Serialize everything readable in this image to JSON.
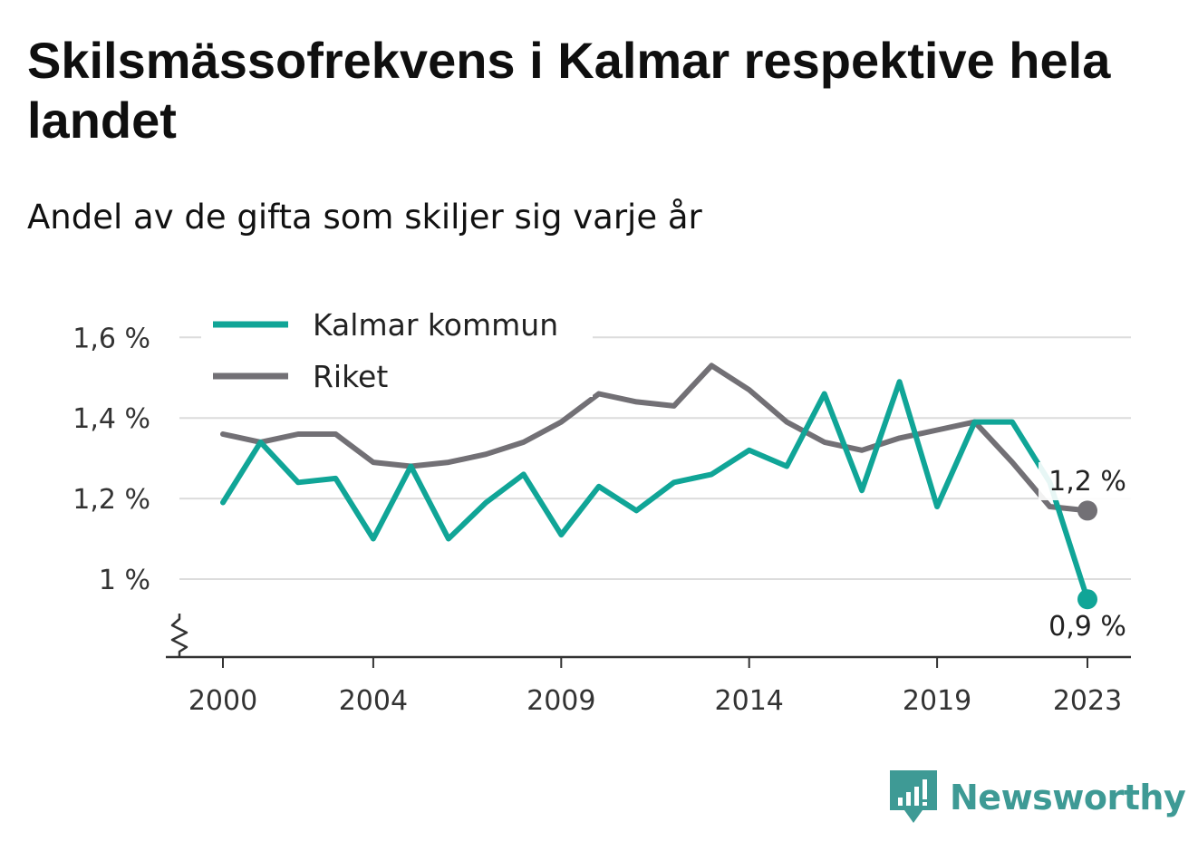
{
  "title": "Skilsmässofrekvens i Kalmar respektive hela landet",
  "subtitle": "Andel av de gifta som skiljer sig varje år",
  "brand": {
    "name": "Newsworthy",
    "icon": "newsworthy-logo-icon",
    "color": "#3e9a95"
  },
  "chart_data": {
    "type": "line",
    "x": [
      2000,
      2001,
      2002,
      2003,
      2004,
      2005,
      2006,
      2007,
      2008,
      2009,
      2010,
      2011,
      2012,
      2013,
      2014,
      2015,
      2016,
      2017,
      2018,
      2019,
      2020,
      2021,
      2022,
      2023
    ],
    "x_ticks": [
      2000,
      2004,
      2009,
      2014,
      2019,
      2023
    ],
    "x_tick_labels": [
      "2000",
      "2004",
      "2009",
      "2014",
      "2019",
      "2023"
    ],
    "y_ticks": [
      1.0,
      1.2,
      1.4,
      1.6
    ],
    "y_tick_labels": [
      "1 %",
      "1,2 %",
      "1,4 %",
      "1,6 %"
    ],
    "ylim": [
      0.8,
      1.6
    ],
    "y_axis_broken": true,
    "grid": true,
    "legend_position": "top-left",
    "series": [
      {
        "name": "Kalmar kommun",
        "color": "#10a597",
        "values": [
          1.19,
          1.34,
          1.24,
          1.25,
          1.1,
          1.28,
          1.1,
          1.19,
          1.26,
          1.11,
          1.23,
          1.17,
          1.24,
          1.26,
          1.32,
          1.28,
          1.46,
          1.22,
          1.49,
          1.18,
          1.39,
          1.39,
          1.24,
          0.95
        ],
        "end_label": "0,9 %"
      },
      {
        "name": "Riket",
        "color": "#727075",
        "values": [
          1.36,
          1.34,
          1.36,
          1.36,
          1.29,
          1.28,
          1.29,
          1.31,
          1.34,
          1.39,
          1.46,
          1.44,
          1.43,
          1.53,
          1.47,
          1.39,
          1.34,
          1.32,
          1.35,
          1.37,
          1.39,
          1.29,
          1.18,
          1.17
        ],
        "end_label": "1,2 %"
      }
    ]
  }
}
